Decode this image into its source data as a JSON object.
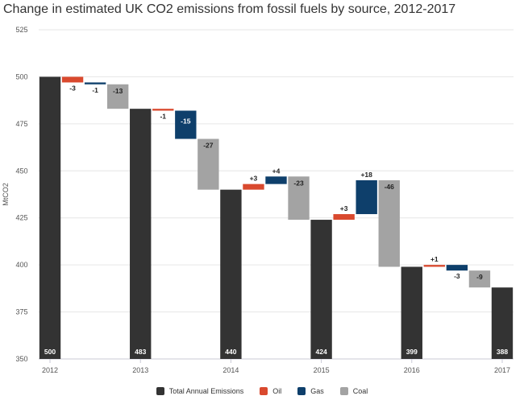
{
  "title": "Change in estimated UK CO2 emissions from fossil fuels by source, 2012-2017",
  "colors": {
    "total": "#333333",
    "oil": "#d9492e",
    "gas": "#0e3f6b",
    "coal": "#a3a3a3",
    "grid": "#e6e6e6"
  },
  "legend": [
    {
      "key": "total",
      "label": "Total Annual Emissions"
    },
    {
      "key": "oil",
      "label": "Oil"
    },
    {
      "key": "gas",
      "label": "Gas"
    },
    {
      "key": "coal",
      "label": "Coal"
    }
  ],
  "chart_data": {
    "type": "bar",
    "subtype": "waterfall",
    "ylabel": "MtCO2",
    "ylim": [
      350,
      525
    ],
    "yticks": [
      350,
      375,
      400,
      425,
      450,
      475,
      500,
      525
    ],
    "grid": true,
    "legend_position": "bottom",
    "bars": [
      {
        "kind": "total",
        "value": 500,
        "label": "500",
        "year": "2012"
      },
      {
        "kind": "oil",
        "delta": -3,
        "label": "-3"
      },
      {
        "kind": "gas",
        "delta": -1,
        "label": "-1"
      },
      {
        "kind": "coal",
        "delta": -13,
        "label": "-13"
      },
      {
        "kind": "total",
        "value": 483,
        "label": "483",
        "year": "2013"
      },
      {
        "kind": "oil",
        "delta": -1,
        "label": "-1"
      },
      {
        "kind": "gas",
        "delta": -15,
        "label": "-15"
      },
      {
        "kind": "coal",
        "delta": -27,
        "label": "-27"
      },
      {
        "kind": "total",
        "value": 440,
        "label": "440",
        "year": "2014"
      },
      {
        "kind": "oil",
        "delta": 3,
        "label": "+3"
      },
      {
        "kind": "gas",
        "delta": 4,
        "label": "+4"
      },
      {
        "kind": "coal",
        "delta": -23,
        "label": "-23"
      },
      {
        "kind": "total",
        "value": 424,
        "label": "424",
        "year": "2015"
      },
      {
        "kind": "oil",
        "delta": 3,
        "label": "+3"
      },
      {
        "kind": "gas",
        "delta": 18,
        "label": "+18"
      },
      {
        "kind": "coal",
        "delta": -46,
        "label": "-46"
      },
      {
        "kind": "total",
        "value": 399,
        "label": "399",
        "year": "2016"
      },
      {
        "kind": "oil",
        "delta": 1,
        "label": "+1"
      },
      {
        "kind": "gas",
        "delta": -3,
        "label": "-3"
      },
      {
        "kind": "coal",
        "delta": -9,
        "label": "-9"
      },
      {
        "kind": "total",
        "value": 388,
        "label": "388",
        "year": "2017"
      }
    ]
  }
}
